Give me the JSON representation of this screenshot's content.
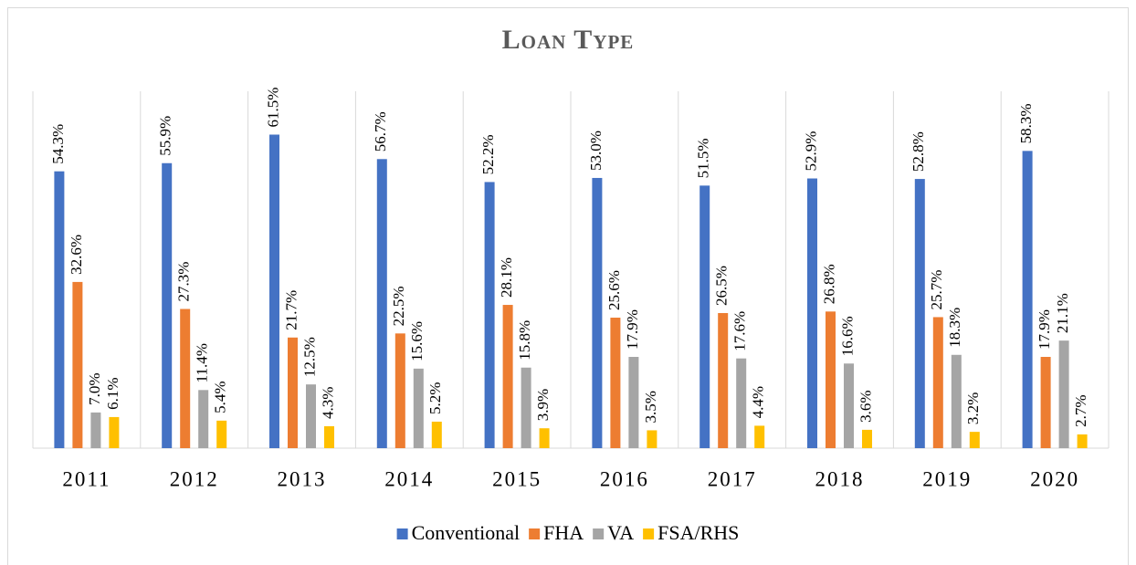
{
  "chart_data": {
    "type": "bar",
    "title": "Loan Type",
    "categories": [
      "2011",
      "2012",
      "2013",
      "2014",
      "2015",
      "2016",
      "2017",
      "2018",
      "2019",
      "2020"
    ],
    "series": [
      {
        "name": "Conventional",
        "color": "#4472c4",
        "values": [
          54.3,
          55.9,
          61.5,
          56.7,
          52.2,
          53.0,
          51.5,
          52.9,
          52.8,
          58.3
        ],
        "value_labels": [
          "54.3%",
          "55.9%",
          "61.5%",
          "56.7%",
          "52.2%",
          "53.0%",
          "51.5%",
          "52.9%",
          "52.8%",
          "58.3%"
        ]
      },
      {
        "name": "FHA",
        "color": "#ed7d31",
        "values": [
          32.6,
          27.3,
          21.7,
          22.5,
          28.1,
          25.6,
          26.5,
          26.8,
          25.7,
          17.9
        ],
        "value_labels": [
          "32.6%",
          "27.3%",
          "21.7%",
          "22.5%",
          "28.1%",
          "25.6%",
          "26.5%",
          "26.8%",
          "25.7%",
          "17.9%"
        ]
      },
      {
        "name": "VA",
        "color": "#a5a5a5",
        "values": [
          7.0,
          11.4,
          12.5,
          15.6,
          15.8,
          17.9,
          17.6,
          16.6,
          18.3,
          21.1
        ],
        "value_labels": [
          "7.0%",
          "11.4%",
          "12.5%",
          "15.6%",
          "15.8%",
          "17.9%",
          "17.6%",
          "16.6%",
          "18.3%",
          "21.1%"
        ]
      },
      {
        "name": "FSA/RHS",
        "color": "#ffc000",
        "values": [
          6.1,
          5.4,
          4.3,
          5.2,
          3.9,
          3.5,
          4.4,
          3.6,
          3.2,
          2.7
        ],
        "value_labels": [
          "6.1%",
          "5.4%",
          "4.3%",
          "5.2%",
          "3.9%",
          "3.5%",
          "4.4%",
          "3.6%",
          "3.2%",
          "2.7%"
        ]
      }
    ],
    "ylim": [
      0,
      70
    ],
    "grid": true,
    "legend": "bottom"
  }
}
